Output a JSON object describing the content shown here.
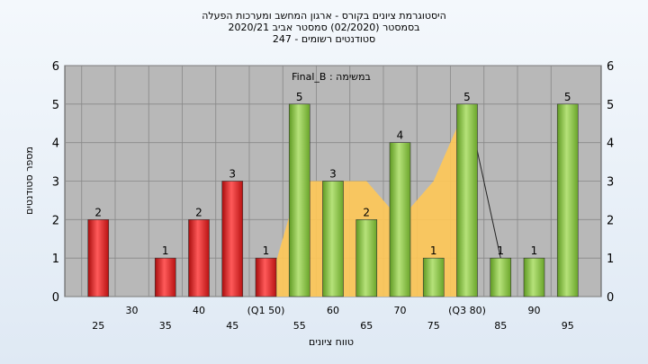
{
  "chart_data": {
    "type": "bar",
    "title_lines": [
      "היסטוגרמת ציונים בקורס - ארגון המחשב ומערכות הפעלה",
      "בסמסטר  (02/2020)  סמסטר אביב 2020/21",
      "סטודנטים רשומים - 247"
    ],
    "subtitle": "במשימה : Final_B",
    "xlabel": "טווח ציונים",
    "ylabel": "מספר סטודנטים",
    "ylim": [
      0,
      6
    ],
    "yticks": [
      0,
      1,
      2,
      3,
      4,
      5,
      6
    ],
    "x_tick_labels": [
      "25",
      "30",
      "35",
      "40",
      "45",
      "(Q1 50)",
      "55",
      "60",
      "65",
      "70",
      "75",
      "(Q3 80)",
      "85",
      "90",
      "95"
    ],
    "x": [
      25,
      30,
      35,
      40,
      45,
      50,
      55,
      60,
      65,
      70,
      75,
      80,
      85,
      90,
      95
    ],
    "values": [
      2,
      0,
      1,
      2,
      3,
      1,
      5,
      3,
      2,
      4,
      1,
      5,
      1,
      1,
      5
    ],
    "data_labels": [
      "2",
      "",
      "1",
      "2",
      "3",
      "1",
      "5",
      "3",
      "2",
      "4",
      "1",
      "5",
      "1",
      "1",
      "5"
    ],
    "bar_colors": {
      "25": "red",
      "30": "red",
      "35": "red",
      "40": "red",
      "45": "red",
      "50": "red",
      "55": "green",
      "60": "green",
      "65": "green",
      "70": "green",
      "75": "green",
      "80": "green",
      "85": "green",
      "90": "green",
      "95": "green"
    },
    "shaded_area_x": [
      50,
      55,
      60,
      65,
      70,
      75,
      80
    ],
    "shaded_area_y": [
      0,
      3,
      3,
      3,
      2,
      3,
      5
    ],
    "grid": true,
    "legend": "none"
  },
  "colors": {
    "plot_bg": "#b8b8b8",
    "red_bar": "#e02020",
    "green_bar": "#8cc63f",
    "area": "#ffc857",
    "grid": "#888888"
  }
}
